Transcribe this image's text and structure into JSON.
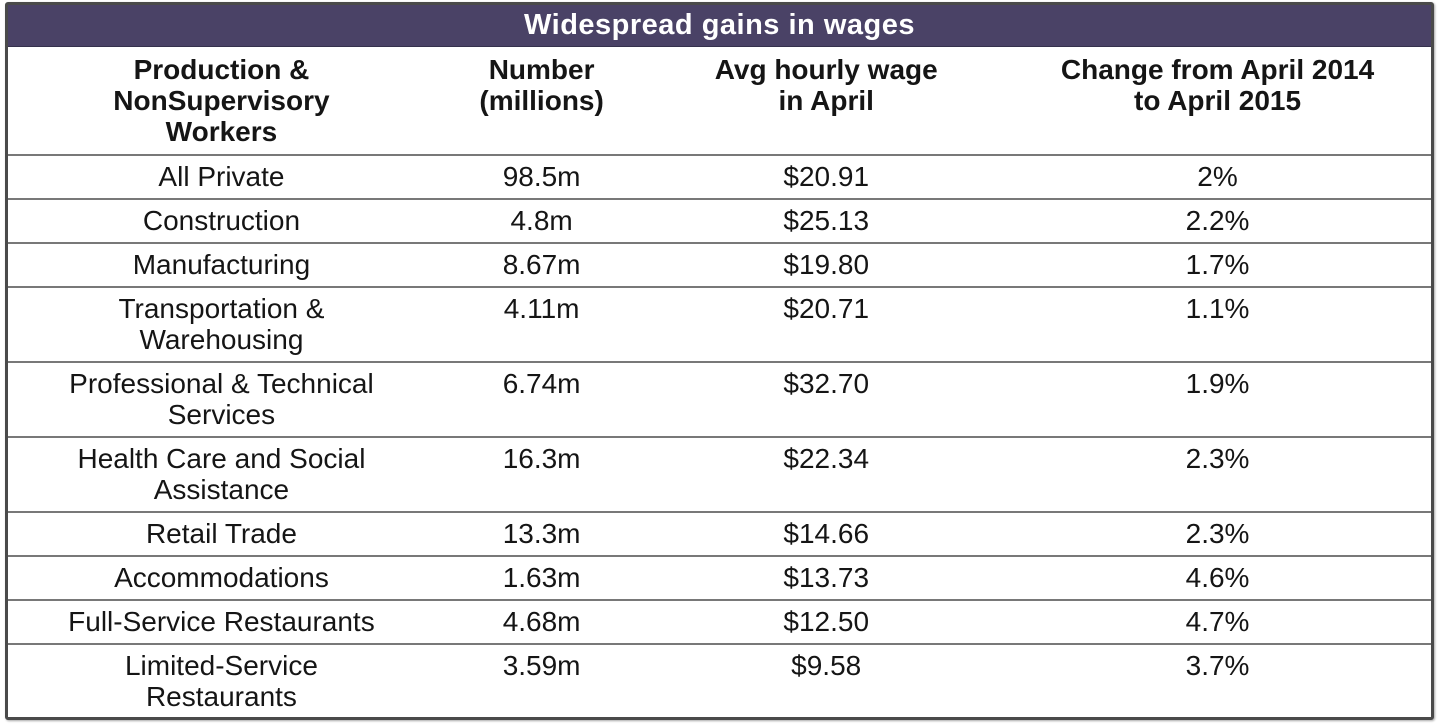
{
  "title": "Widespread gains in wages",
  "colors": {
    "title_bg": "#4a4266",
    "title_text": "#ffffff",
    "frame_border": "#4a4a4a",
    "row_divider": "#787878",
    "body_text": "#151515"
  },
  "table": {
    "columns": [
      {
        "label": "Production &\nNonSupervisory\nWorkers"
      },
      {
        "label": "Number\n(millions)"
      },
      {
        "label": "Avg hourly wage\nin April"
      },
      {
        "label": "Change from April 2014\nto April 2015"
      }
    ],
    "rows": [
      {
        "category": "All Private",
        "number": "98.5m",
        "wage": "$20.91",
        "change": "2%"
      },
      {
        "category": "Construction",
        "number": "4.8m",
        "wage": "$25.13",
        "change": "2.2%"
      },
      {
        "category": "Manufacturing",
        "number": "8.67m",
        "wage": "$19.80",
        "change": "1.7%"
      },
      {
        "category": "Transportation &\nWarehousing",
        "number": "4.11m",
        "wage": "$20.71",
        "change": "1.1%"
      },
      {
        "category": "Professional & Technical\nServices",
        "number": "6.74m",
        "wage": "$32.70",
        "change": "1.9%"
      },
      {
        "category": "Health Care and Social\nAssistance",
        "number": "16.3m",
        "wage": "$22.34",
        "change": "2.3%"
      },
      {
        "category": "Retail Trade",
        "number": "13.3m",
        "wage": "$14.66",
        "change": "2.3%"
      },
      {
        "category": "Accommodations",
        "number": "1.63m",
        "wage": "$13.73",
        "change": "4.6%"
      },
      {
        "category": "Full-Service Restaurants",
        "number": "4.68m",
        "wage": "$12.50",
        "change": "4.7%"
      },
      {
        "category": "Limited-Service\nRestaurants",
        "number": "3.59m",
        "wage": "$9.58",
        "change": "3.7%"
      }
    ]
  },
  "chart_data": {
    "type": "table",
    "title": "Widespread gains in wages",
    "columns": [
      "Production & NonSupervisory Workers",
      "Number (millions)",
      "Avg hourly wage in April",
      "Change from April 2014 to April 2015"
    ],
    "rows": [
      [
        "All Private",
        "98.5m",
        "$20.91",
        "2%"
      ],
      [
        "Construction",
        "4.8m",
        "$25.13",
        "2.2%"
      ],
      [
        "Manufacturing",
        "8.67m",
        "$19.80",
        "1.7%"
      ],
      [
        "Transportation & Warehousing",
        "4.11m",
        "$20.71",
        "1.1%"
      ],
      [
        "Professional & Technical Services",
        "6.74m",
        "$32.70",
        "1.9%"
      ],
      [
        "Health Care and Social Assistance",
        "16.3m",
        "$22.34",
        "2.3%"
      ],
      [
        "Retail Trade",
        "13.3m",
        "$14.66",
        "2.3%"
      ],
      [
        "Accommodations",
        "1.63m",
        "$13.73",
        "4.6%"
      ],
      [
        "Full-Service Restaurants",
        "4.68m",
        "$12.50",
        "4.7%"
      ],
      [
        "Limited-Service Restaurants",
        "3.59m",
        "$9.58",
        "3.7%"
      ]
    ],
    "numeric": {
      "number_millions": [
        98.5,
        4.8,
        8.67,
        4.11,
        6.74,
        16.3,
        13.3,
        1.63,
        4.68,
        3.59
      ],
      "avg_hourly_wage_usd": [
        20.91,
        25.13,
        19.8,
        20.71,
        32.7,
        22.34,
        14.66,
        13.73,
        12.5,
        9.58
      ],
      "change_pct": [
        2.0,
        2.2,
        1.7,
        1.1,
        1.9,
        2.3,
        2.3,
        4.6,
        4.7,
        3.7
      ]
    }
  }
}
